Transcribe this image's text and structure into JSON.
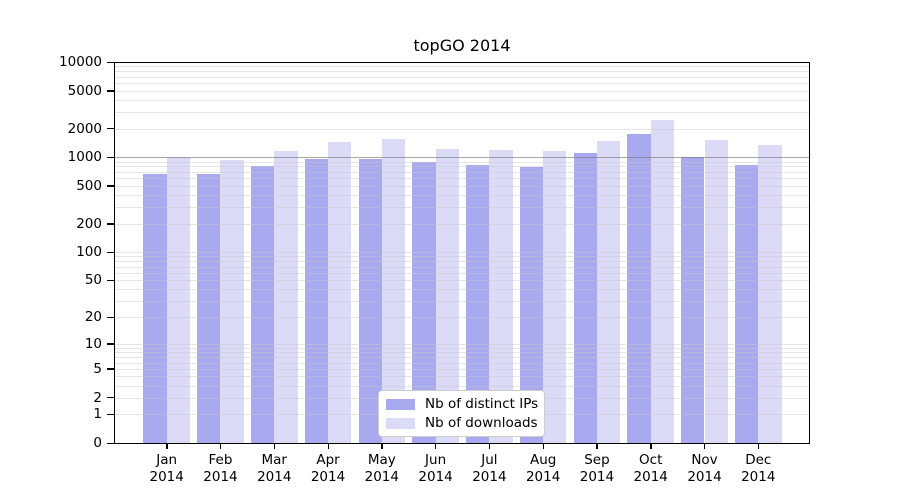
{
  "chart_data": {
    "type": "bar",
    "title": "topGO 2014",
    "categories": [
      "Jan 2014",
      "Feb 2014",
      "Mar 2014",
      "Apr 2014",
      "May 2014",
      "Jun 2014",
      "Jul 2014",
      "Aug 2014",
      "Sep 2014",
      "Oct 2014",
      "Nov 2014",
      "Dec 2014"
    ],
    "series": [
      {
        "name": "Nb of distinct IPs",
        "color": "#a9a9f0",
        "values": [
          660,
          660,
          810,
          950,
          950,
          880,
          820,
          790,
          1100,
          1760,
          1015,
          820
        ]
      },
      {
        "name": "Nb of downloads",
        "color": "#dbdbf7",
        "values": [
          1000,
          930,
          1170,
          1430,
          1560,
          1210,
          1195,
          1170,
          1490,
          2450,
          1520,
          1340
        ]
      }
    ],
    "y_axis": {
      "scale": "log1p",
      "ticks": [
        10000,
        5000,
        2000,
        1000,
        500,
        200,
        100,
        50,
        20,
        10,
        5,
        2,
        1,
        0
      ],
      "max": 10000,
      "emphasized_gridline": 1000,
      "grid": "on"
    },
    "legend": {
      "position": "lower center"
    },
    "colors": {
      "axis": "#000000",
      "minor_grid": "#e6e6e6",
      "major_grid": "#a6a6a6",
      "background": "#ffffff"
    }
  }
}
